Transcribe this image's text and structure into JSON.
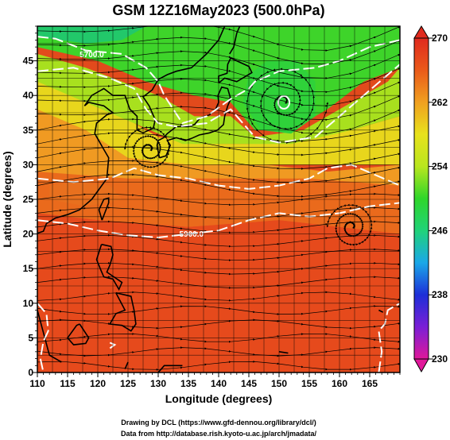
{
  "chart_data": {
    "type": "heatmap",
    "title": "GSM 12Z16May2023 (500.0hPa)",
    "xlabel": "Longitude (degrees)",
    "ylabel": "Latitude  (degrees)",
    "xlim": [
      110,
      170
    ],
    "ylim": [
      0,
      50
    ],
    "x_ticks": [
      110,
      115,
      120,
      125,
      130,
      135,
      140,
      145,
      150,
      155,
      160,
      165
    ],
    "y_ticks": [
      0,
      5,
      10,
      15,
      20,
      25,
      30,
      35,
      40,
      45
    ],
    "colorbar": {
      "range": [
        230,
        270
      ],
      "ticks": [
        230,
        238,
        246,
        254,
        262,
        270
      ],
      "colors": [
        "#e0189a",
        "#7a1fd6",
        "#1d2fd8",
        "#1aa8e8",
        "#20d27a",
        "#2fd62a",
        "#b9e61f",
        "#e8e21c",
        "#f0a020",
        "#ea5a1a",
        "#e02a1e"
      ]
    },
    "contour_labels": [
      {
        "text": "5700.0"
      },
      {
        "text": "5900.0"
      }
    ],
    "vortex_centers": [
      {
        "lon": 150.8,
        "lat": 39.0
      },
      {
        "lon": 128.5,
        "lat": 32.2
      },
      {
        "lon": 162,
        "lat": 21
      }
    ],
    "grid": true
  },
  "footer": {
    "line1": "Drawing by DCL (https://www.gfd-dennou.org/library/dcl/)",
    "line2": "Data from http://database.rish.kyoto-u.ac.jp/arch/jmadata/"
  }
}
